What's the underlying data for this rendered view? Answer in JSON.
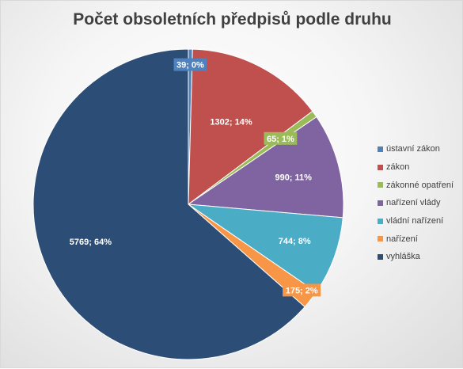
{
  "chart_data": {
    "type": "pie",
    "title": "Počet obsoletních předpisů podle druhu",
    "legend_position": "right",
    "slices": [
      {
        "name": "ústavní zákon",
        "value": 39,
        "percent": "0%",
        "color": "#4f81bd"
      },
      {
        "name": "zákon",
        "value": 1302,
        "percent": "14%",
        "color": "#c0504d"
      },
      {
        "name": "zákonné opatření",
        "value": 65,
        "percent": "1%",
        "color": "#9bbb59"
      },
      {
        "name": "nařízení vlády",
        "value": 990,
        "percent": "11%",
        "color": "#8064a2"
      },
      {
        "name": "vládní nařízení",
        "value": 744,
        "percent": "8%",
        "color": "#4bacc6"
      },
      {
        "name": "nařízení",
        "value": 175,
        "percent": "2%",
        "color": "#f79646"
      },
      {
        "name": "vyhláška",
        "value": 5769,
        "percent": "64%",
        "color": "#2c4d75"
      }
    ],
    "data_labels": [
      "39; 0%",
      "1302; 14%",
      "65; 1%",
      "990; 11%",
      "744; 8%",
      "175; 2%",
      "5769; 64%"
    ]
  }
}
